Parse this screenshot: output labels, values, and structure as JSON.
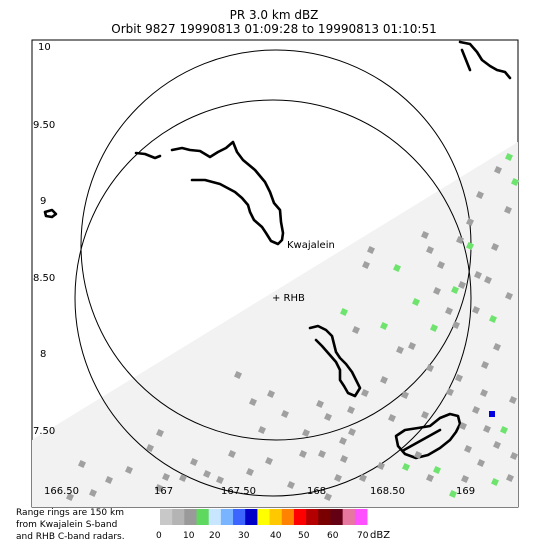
{
  "header": {
    "title": "PR  3.0 km dBZ",
    "subtitle": "Orbit 9827 19990813 01:09:28 to 19990813 01:10:51"
  },
  "map": {
    "lat_ticks": [
      "10",
      "9.50",
      "9",
      "8.50",
      "8",
      "7.50"
    ],
    "lon_ticks": [
      "166.50",
      "167",
      "167.50",
      "168",
      "168.50",
      "169"
    ],
    "labels": {
      "kwajalein": "Kwajalein",
      "rhb": "+ RHB"
    }
  },
  "legend": {
    "note_lines": [
      "Range rings are 150 km",
      "from Kwajalein S-band",
      "and RHB C-band radars."
    ],
    "tick_labels": [
      "0",
      "10",
      "20",
      "30",
      "40",
      "50",
      "60",
      "70"
    ],
    "unit": "dBZ",
    "colors": [
      "#c8c8c8",
      "#b4b4b4",
      "#9a9a9a",
      "#5fd85f",
      "#c8e6ff",
      "#78b4ff",
      "#3c64ff",
      "#0000c8",
      "#ffff00",
      "#ffc800",
      "#ff8200",
      "#ff0000",
      "#b40000",
      "#780000",
      "#640014",
      "#e678a0",
      "#ff50ff"
    ]
  }
}
